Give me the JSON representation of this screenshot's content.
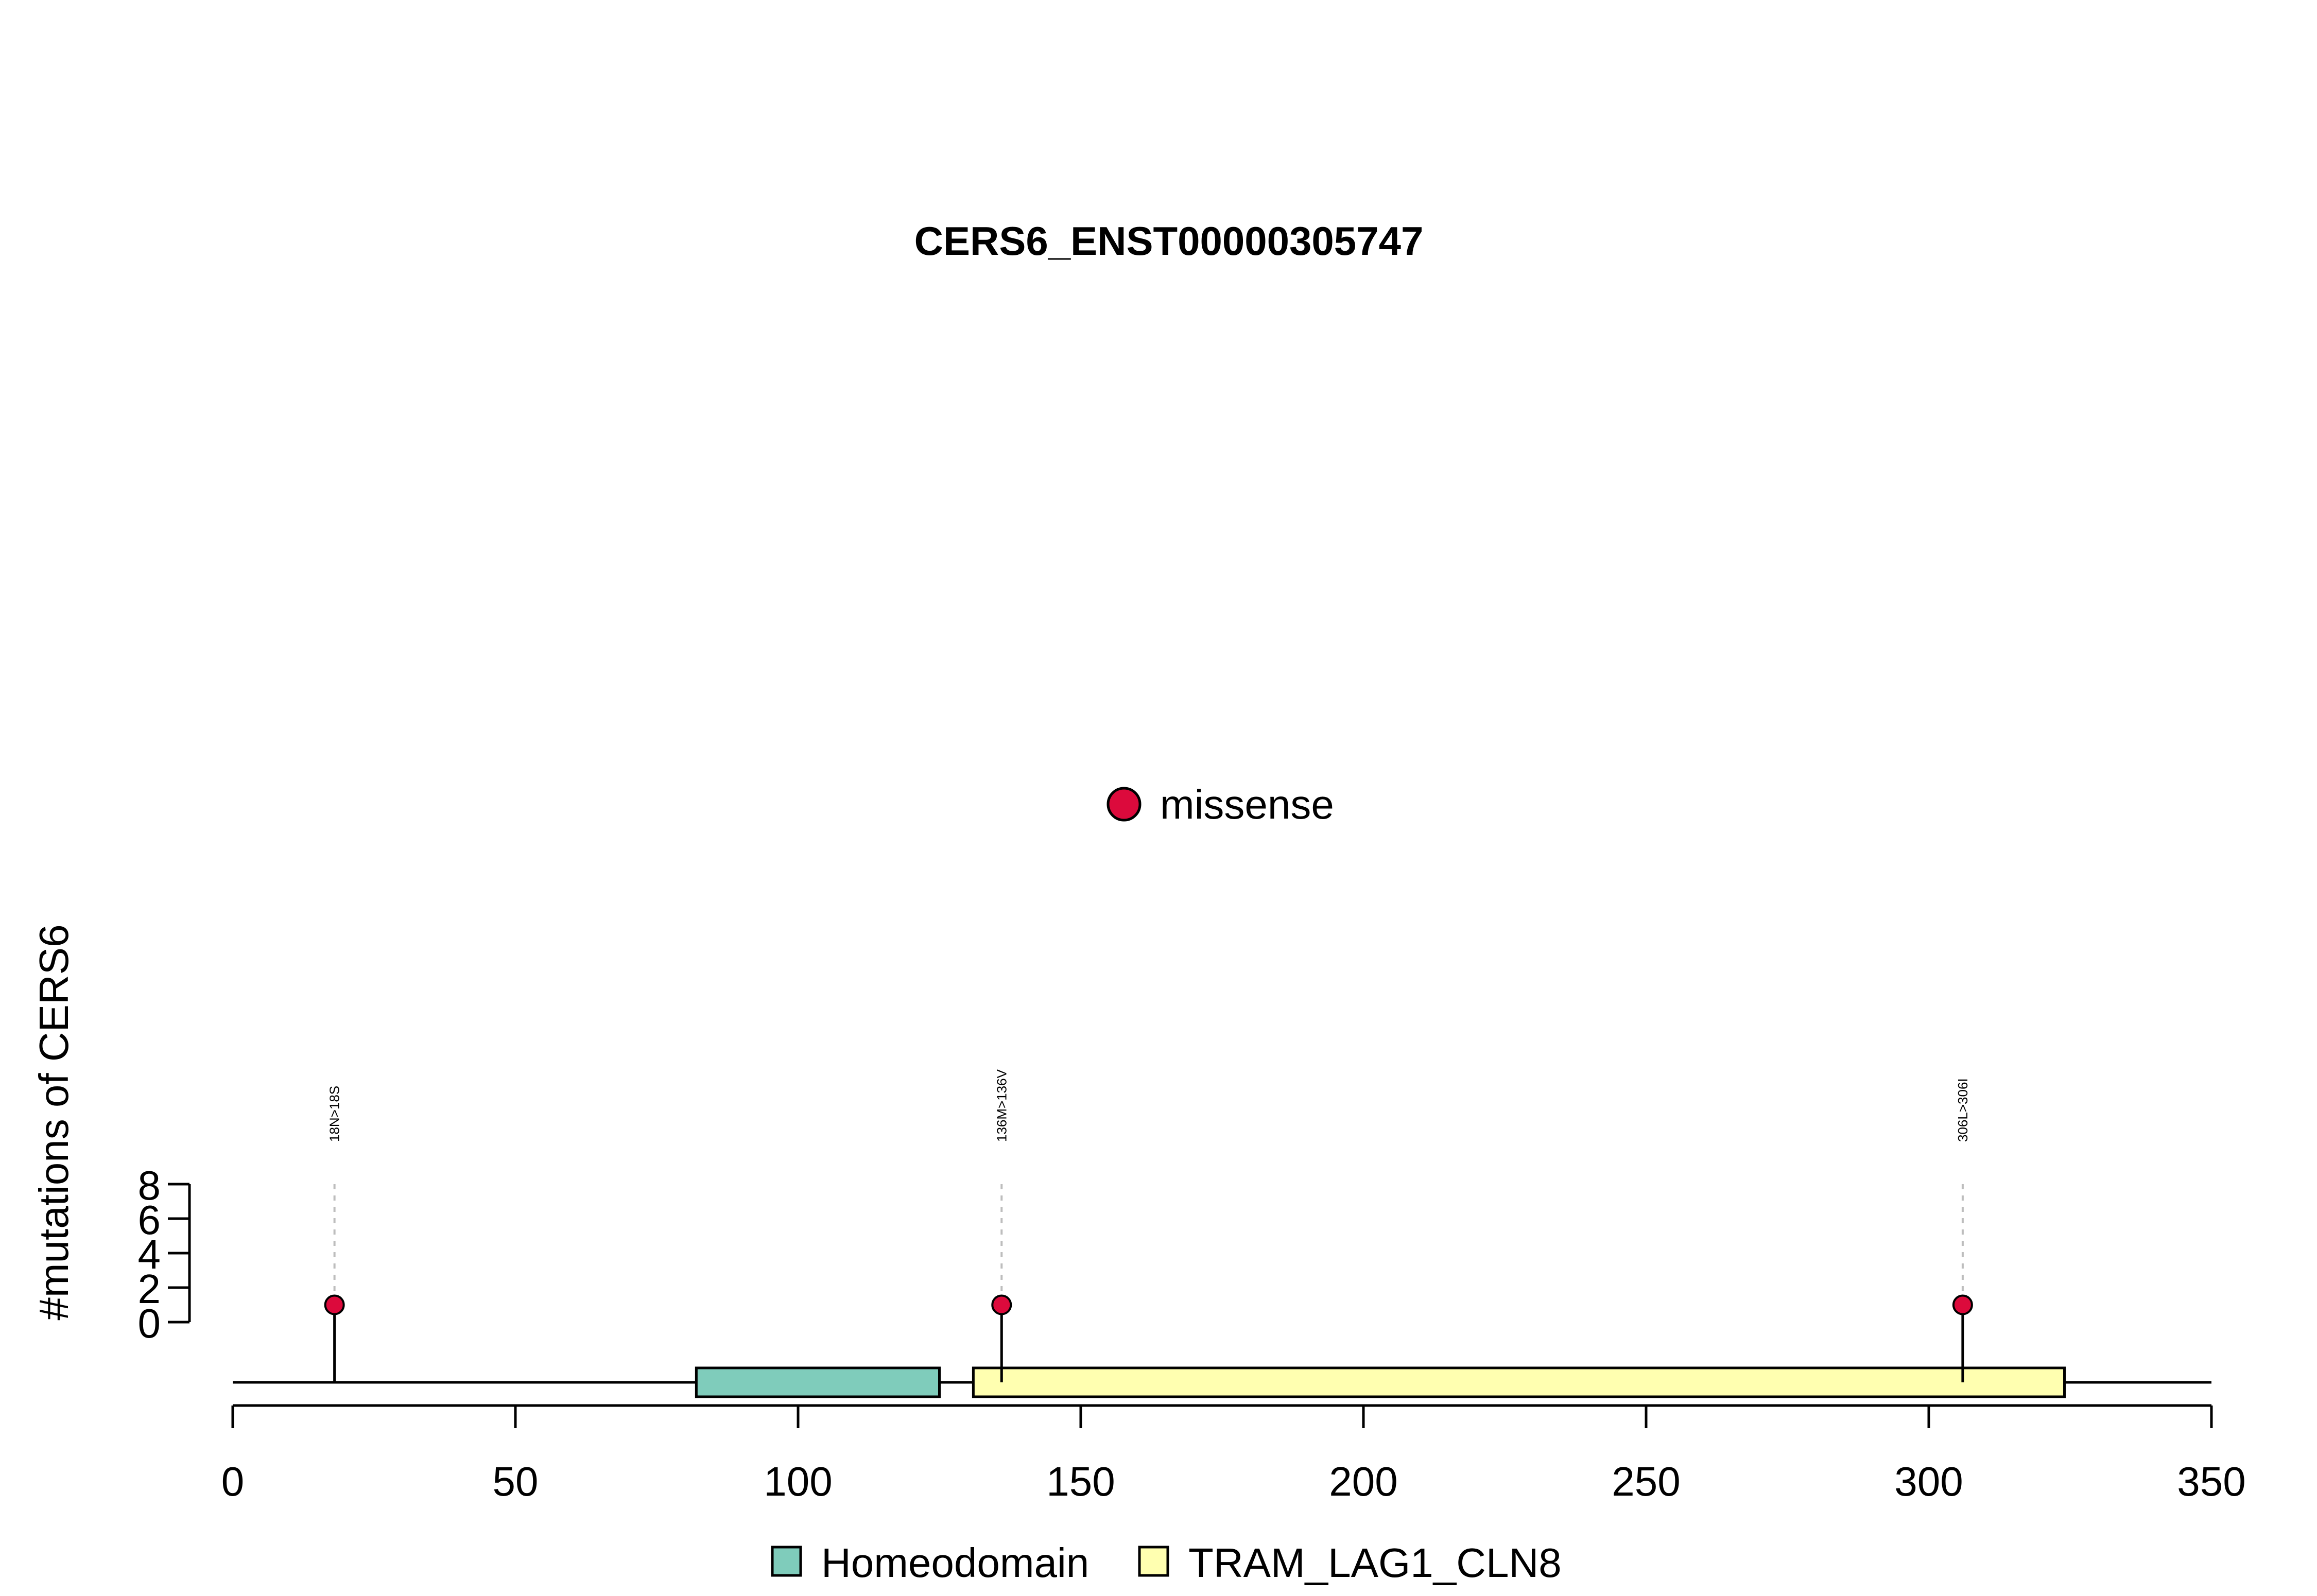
{
  "chart_data": {
    "type": "lollipop",
    "title": "CERS6_ENST00000305747",
    "ylabel": "#mutations of CERS6",
    "xlim": [
      0,
      350
    ],
    "ylim": [
      0,
      8
    ],
    "x_ticks": [
      "0",
      "50",
      "100",
      "150",
      "200",
      "250",
      "300",
      "350"
    ],
    "y_ticks": [
      "0",
      "2",
      "4",
      "6",
      "8"
    ],
    "protein_length": 350,
    "mutations": [
      {
        "position": 18,
        "count": 1,
        "label": "18N>18S",
        "type": "missense"
      },
      {
        "position": 136,
        "count": 1,
        "label": "136M>136V",
        "type": "missense"
      },
      {
        "position": 306,
        "count": 1,
        "label": "306L>306I",
        "type": "missense"
      }
    ],
    "domains": [
      {
        "name": "Homeodomain",
        "start": 82,
        "end": 125,
        "color": "#7fccbb"
      },
      {
        "name": "TRAM_LAG1_CLN8",
        "start": 131,
        "end": 324,
        "color": "#ffffb0"
      }
    ],
    "mutation_legend": [
      {
        "label": "missense",
        "color": "#dc0a3c"
      }
    ],
    "domain_legend": [
      {
        "label": "Homeodomain",
        "color": "#7fccbb"
      },
      {
        "label": "TRAM_LAG1_CLN8",
        "color": "#ffffb0"
      }
    ]
  }
}
